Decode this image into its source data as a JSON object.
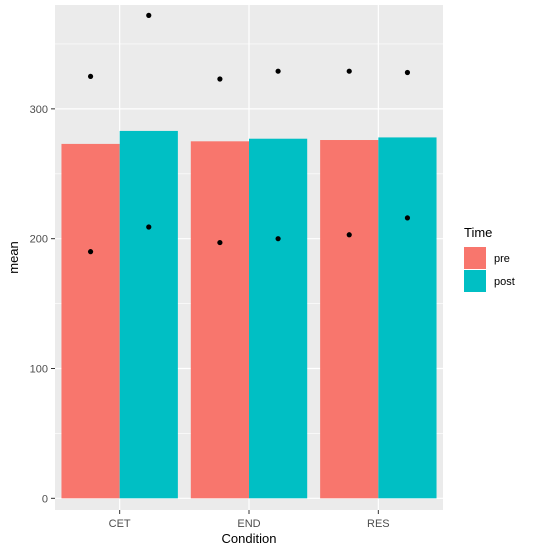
{
  "chart_data": {
    "type": "bar",
    "categories": [
      "CET",
      "END",
      "RES"
    ],
    "series": [
      {
        "name": "pre",
        "values": [
          273,
          275,
          276
        ],
        "color": "#F8766D"
      },
      {
        "name": "post",
        "values": [
          283,
          277,
          278
        ],
        "color": "#00BFC4"
      }
    ],
    "points": [
      {
        "category": "CET",
        "series": "pre",
        "values": [
          190,
          325
        ]
      },
      {
        "category": "CET",
        "series": "post",
        "values": [
          209,
          372
        ]
      },
      {
        "category": "END",
        "series": "pre",
        "values": [
          197,
          323
        ]
      },
      {
        "category": "END",
        "series": "post",
        "values": [
          200,
          329
        ]
      },
      {
        "category": "RES",
        "series": "pre",
        "values": [
          203,
          329
        ]
      },
      {
        "category": "RES",
        "series": "post",
        "values": [
          216,
          328
        ]
      }
    ],
    "xlabel": "Condition",
    "ylabel": "mean",
    "yticks": [
      0,
      100,
      200,
      300
    ],
    "ylim": [
      -9,
      380
    ],
    "legend": {
      "title": "Time",
      "placement": "right"
    },
    "grid": true,
    "panel_color": "#EBEBEB",
    "point_color": "#000000"
  }
}
